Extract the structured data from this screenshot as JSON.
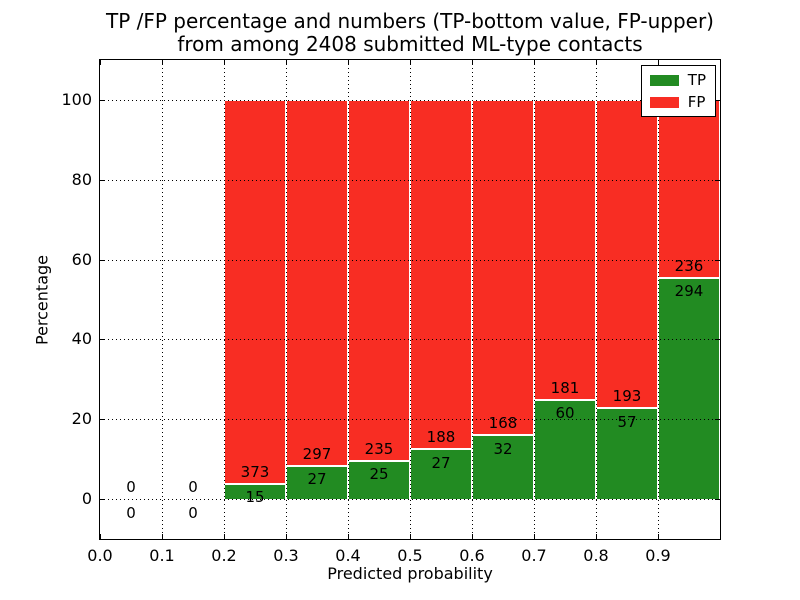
{
  "chart_data": {
    "type": "bar",
    "stacked": true,
    "title_line1": "TP /FP percentage and numbers (TP-bottom value, FP-upper)",
    "title_line2": "from among 2408 submitted ML-type contacts",
    "xlabel": "Predicted probability",
    "ylabel": "Percentage",
    "total_contacts": 2408,
    "xlim": [
      0.0,
      1.0
    ],
    "ylim": [
      -10,
      110
    ],
    "grid": true,
    "legend_position": "upper-right",
    "x_tick_labels": [
      "0.0",
      "0.1",
      "0.2",
      "0.3",
      "0.4",
      "0.5",
      "0.6",
      "0.7",
      "0.8",
      "0.9"
    ],
    "y_ticks": [
      0,
      20,
      40,
      60,
      80,
      100
    ],
    "legend": [
      {
        "label": "TP",
        "color": "#228b22"
      },
      {
        "label": "FP",
        "color": "#f82d23"
      }
    ],
    "bins": [
      {
        "range": [
          0.0,
          0.1
        ],
        "tp": 0,
        "fp": 0
      },
      {
        "range": [
          0.1,
          0.2
        ],
        "tp": 0,
        "fp": 0
      },
      {
        "range": [
          0.2,
          0.3
        ],
        "tp": 15,
        "fp": 373
      },
      {
        "range": [
          0.3,
          0.4
        ],
        "tp": 27,
        "fp": 297
      },
      {
        "range": [
          0.4,
          0.5
        ],
        "tp": 25,
        "fp": 235
      },
      {
        "range": [
          0.5,
          0.6
        ],
        "tp": 27,
        "fp": 188
      },
      {
        "range": [
          0.6,
          0.7
        ],
        "tp": 32,
        "fp": 168
      },
      {
        "range": [
          0.7,
          0.8
        ],
        "tp": 60,
        "fp": 181
      },
      {
        "range": [
          0.8,
          0.9
        ],
        "tp": 57,
        "fp": 193
      },
      {
        "range": [
          0.9,
          1.0
        ],
        "tp": 294,
        "fp": 236
      }
    ]
  }
}
